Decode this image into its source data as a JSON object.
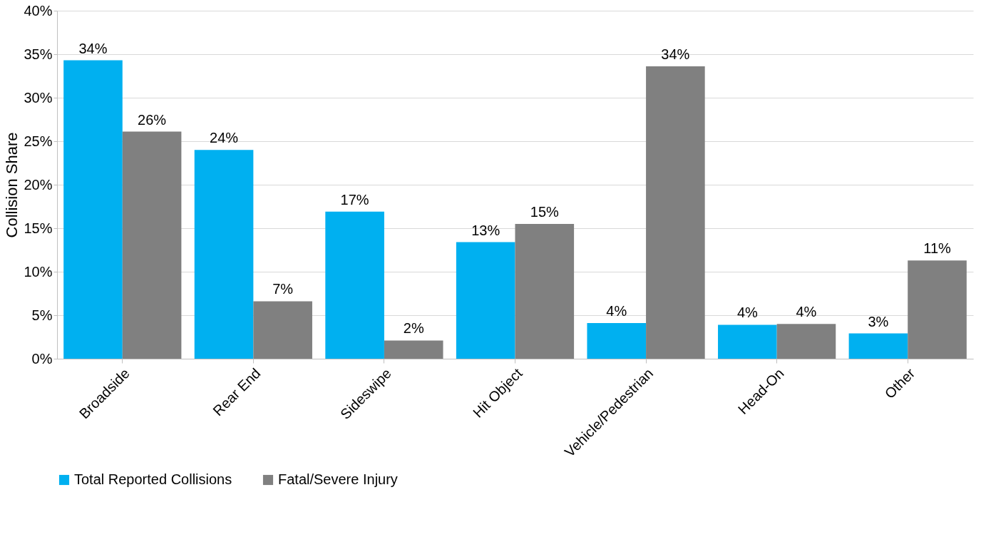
{
  "chart_data": {
    "type": "bar",
    "ylabel": "Collision Share",
    "categories": [
      "Broadside",
      "Rear End",
      "Sideswipe",
      "Hit Object",
      "Vehicle/Pedestrian",
      "Head-On",
      "Other"
    ],
    "series": [
      {
        "name": "Total Reported Collisions",
        "color": "#00b0f0",
        "values": [
          34.3,
          24.0,
          16.9,
          13.4,
          4.1,
          3.9,
          2.9
        ],
        "value_labels": [
          "34%",
          "24%",
          "17%",
          "13%",
          "4%",
          "4%",
          "3%"
        ]
      },
      {
        "name": "Fatal/Severe Injury",
        "color": "#808080",
        "values": [
          26.1,
          6.6,
          2.1,
          15.5,
          33.6,
          4.0,
          11.3
        ],
        "value_labels": [
          "26%",
          "7%",
          "2%",
          "15%",
          "34%",
          "4%",
          "11%"
        ]
      }
    ],
    "ylim": [
      0,
      40
    ],
    "yticks": [
      {
        "value": 0,
        "label": "0%"
      },
      {
        "value": 5,
        "label": "5%"
      },
      {
        "value": 10,
        "label": "10%"
      },
      {
        "value": 15,
        "label": "15%"
      },
      {
        "value": 20,
        "label": "20%"
      },
      {
        "value": 25,
        "label": "25%"
      },
      {
        "value": 30,
        "label": "30%"
      },
      {
        "value": 35,
        "label": "35%"
      },
      {
        "value": 40,
        "label": "40%"
      }
    ],
    "grid": "y",
    "legend": "bottom"
  }
}
